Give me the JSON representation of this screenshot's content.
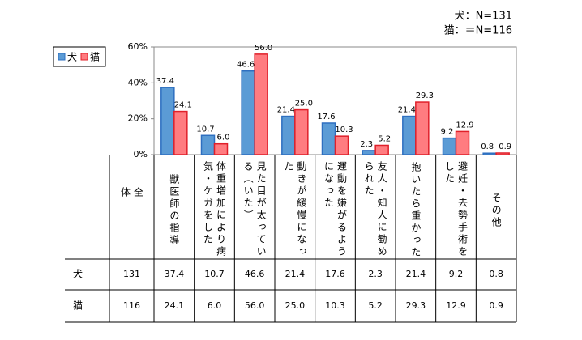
{
  "chart_data": {
    "type": "bar",
    "notes": [
      "犬：N=131",
      "猫：＝N=116"
    ],
    "categories": [
      "獣医師の指導",
      "体重増加により病気・ケガをした",
      "見た目が太っている（いた）",
      "動きが緩慢になった",
      "運動を嫌がるようになった",
      "友人・知人に勧められた",
      "抱いたら重かった",
      "避妊・去勢手術をした",
      "その他"
    ],
    "series": [
      {
        "name": "犬",
        "color": "#5b9bd5",
        "edge": "#2e6fc0",
        "total": 131,
        "values": [
          37.4,
          10.7,
          46.6,
          21.4,
          17.6,
          2.3,
          21.4,
          9.2,
          0.8
        ],
        "value_labels": [
          "37.4",
          "10.7",
          "46.6",
          "21.4",
          "17.6",
          "2.3",
          "21.4",
          "9.2",
          "0.8"
        ]
      },
      {
        "name": "猫",
        "color": "#ff7c80",
        "edge": "#e0202a",
        "total": 116,
        "values": [
          24.1,
          6.0,
          56.0,
          25.0,
          10.3,
          5.2,
          29.3,
          12.9,
          0.9
        ],
        "value_labels": [
          "24.1",
          "6.0",
          "56.0",
          "25.0",
          "10.3",
          "5.2",
          "29.3",
          "12.9",
          "0.9"
        ]
      }
    ],
    "total_header": "全体",
    "ylim": [
      0,
      60
    ],
    "yticks": [
      {
        "value": 0,
        "label": "0%"
      },
      {
        "value": 20,
        "label": "20%"
      },
      {
        "value": 40,
        "label": "40%"
      },
      {
        "value": 60,
        "label": "60%"
      }
    ],
    "grid": false
  }
}
